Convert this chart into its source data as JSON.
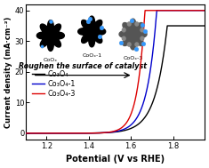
{
  "title": "",
  "xlabel": "Potential (V vs RHE)",
  "ylabel": "Current density (mA·cm⁻²)",
  "xlim": [
    1.1,
    1.95
  ],
  "ylim": [
    -2,
    42
  ],
  "xticks": [
    1.2,
    1.4,
    1.6,
    1.8
  ],
  "yticks": [
    0,
    10,
    20,
    30,
    40
  ],
  "legend": [
    "Co₃O₄",
    "Co₃O₄-1",
    "Co₃O₄-3"
  ],
  "colors": [
    "black",
    "#0000cc",
    "#dd0000"
  ],
  "bg_color": "#ffffff",
  "onset_black": 1.575,
  "onset_blue": 1.555,
  "onset_red": 1.535,
  "scale_black": 18.0,
  "scale_blue": 22.0,
  "scale_red": 28.0,
  "inset_text": "Roughen the surface of catalyst",
  "inset_labels": [
    "CoOₓ",
    "CoOₓ-1",
    "CoOₓ-3"
  ],
  "figsize": [
    2.35,
    1.89
  ],
  "dpi": 100
}
